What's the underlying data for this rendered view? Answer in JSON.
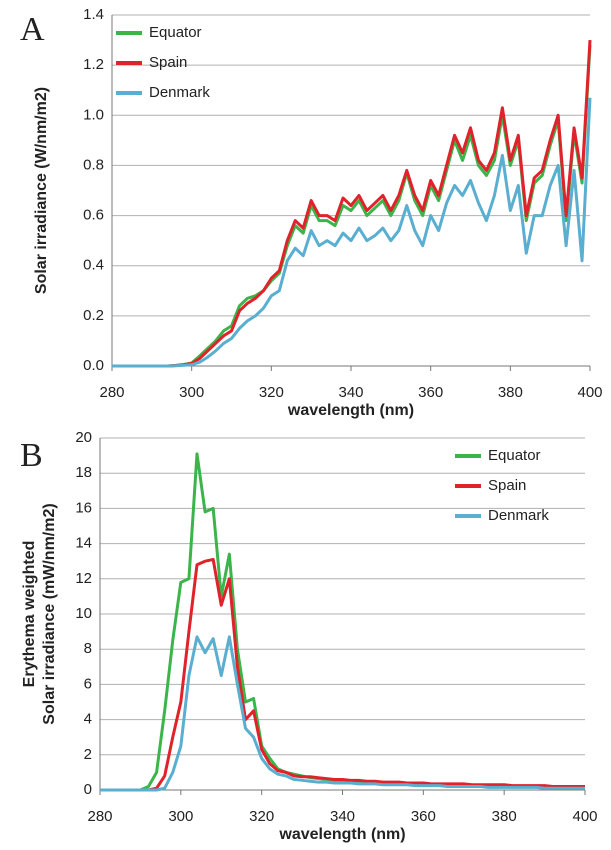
{
  "chart_data": [
    {
      "type": "line",
      "panel_label": "A",
      "xlabel": "wavelength (nm)",
      "ylabel": [
        "Solar irradiance (W/nm/m2)"
      ],
      "x": [
        280,
        282,
        284,
        286,
        288,
        290,
        292,
        294,
        296,
        298,
        300,
        302,
        304,
        306,
        308,
        310,
        312,
        314,
        316,
        318,
        320,
        322,
        324,
        326,
        328,
        330,
        332,
        334,
        336,
        338,
        340,
        342,
        344,
        346,
        348,
        350,
        352,
        354,
        356,
        358,
        360,
        362,
        364,
        366,
        368,
        370,
        372,
        374,
        376,
        378,
        380,
        382,
        384,
        386,
        388,
        390,
        392,
        394,
        396,
        398,
        400
      ],
      "xlim": [
        280,
        400
      ],
      "xticks": [
        280,
        300,
        320,
        340,
        360,
        380,
        400
      ],
      "ylim": [
        0,
        1.4
      ],
      "yticks": [
        {
          "value": 0,
          "label": "0.0"
        },
        0.2,
        0.4,
        0.6,
        0.8,
        {
          "value": 1,
          "label": "1.0"
        },
        1.2,
        1.4
      ],
      "grid": true,
      "legend": "upper left",
      "series": [
        {
          "name": "Equator",
          "color": "#3bb54a",
          "values": [
            0,
            0,
            0,
            0,
            0,
            0,
            0,
            0,
            0.002,
            0.006,
            0.012,
            0.04,
            0.07,
            0.1,
            0.14,
            0.16,
            0.24,
            0.27,
            0.28,
            0.3,
            0.34,
            0.37,
            0.48,
            0.56,
            0.53,
            0.64,
            0.58,
            0.58,
            0.56,
            0.64,
            0.62,
            0.66,
            0.6,
            0.63,
            0.66,
            0.6,
            0.66,
            0.77,
            0.66,
            0.6,
            0.72,
            0.66,
            0.78,
            0.9,
            0.82,
            0.92,
            0.8,
            0.76,
            0.82,
            1.0,
            0.8,
            0.9,
            0.58,
            0.73,
            0.76,
            0.88,
            0.98,
            0.58,
            0.93,
            0.73,
            1.28
          ]
        },
        {
          "name": "Spain",
          "color": "#e0222a",
          "values": [
            0,
            0,
            0,
            0,
            0,
            0,
            0,
            0,
            0.002,
            0.005,
            0.01,
            0.03,
            0.06,
            0.09,
            0.12,
            0.14,
            0.22,
            0.25,
            0.27,
            0.3,
            0.35,
            0.38,
            0.5,
            0.58,
            0.55,
            0.66,
            0.6,
            0.6,
            0.58,
            0.67,
            0.64,
            0.68,
            0.62,
            0.65,
            0.68,
            0.62,
            0.68,
            0.78,
            0.68,
            0.62,
            0.74,
            0.68,
            0.8,
            0.92,
            0.85,
            0.95,
            0.82,
            0.78,
            0.85,
            1.03,
            0.82,
            0.92,
            0.6,
            0.75,
            0.78,
            0.9,
            1.0,
            0.6,
            0.95,
            0.75,
            1.3
          ]
        },
        {
          "name": "Denmark",
          "color": "#5aaed0",
          "values": [
            0,
            0,
            0,
            0,
            0,
            0,
            0,
            0,
            0.001,
            0.003,
            0.005,
            0.015,
            0.035,
            0.06,
            0.09,
            0.11,
            0.15,
            0.18,
            0.2,
            0.23,
            0.28,
            0.3,
            0.42,
            0.47,
            0.44,
            0.54,
            0.48,
            0.5,
            0.48,
            0.53,
            0.5,
            0.55,
            0.5,
            0.52,
            0.55,
            0.5,
            0.54,
            0.64,
            0.54,
            0.48,
            0.6,
            0.54,
            0.65,
            0.72,
            0.68,
            0.74,
            0.65,
            0.58,
            0.68,
            0.84,
            0.62,
            0.72,
            0.45,
            0.6,
            0.6,
            0.72,
            0.8,
            0.48,
            0.78,
            0.42,
            1.07
          ]
        }
      ]
    },
    {
      "type": "line",
      "panel_label": "B",
      "xlabel": "wavelength (nm)",
      "ylabel": [
        "Erythema weighted",
        "Solar irradiance (mW/nm/m2)"
      ],
      "x": [
        280,
        282,
        284,
        286,
        288,
        290,
        292,
        294,
        296,
        298,
        300,
        302,
        304,
        306,
        308,
        310,
        312,
        314,
        316,
        318,
        320,
        322,
        324,
        326,
        328,
        330,
        332,
        334,
        336,
        338,
        340,
        342,
        344,
        346,
        348,
        350,
        352,
        354,
        356,
        358,
        360,
        362,
        364,
        366,
        368,
        370,
        372,
        374,
        376,
        378,
        380,
        382,
        384,
        386,
        388,
        390,
        392,
        394,
        396,
        398,
        400
      ],
      "xlim": [
        280,
        400
      ],
      "xticks": [
        280,
        300,
        320,
        340,
        360,
        380,
        400
      ],
      "ylim": [
        0,
        20
      ],
      "yticks": [
        0,
        2,
        4,
        6,
        8,
        10,
        12,
        14,
        16,
        18,
        20
      ],
      "grid": true,
      "legend": "upper right",
      "series": [
        {
          "name": "Equator",
          "color": "#3bb54a",
          "values": [
            0,
            0,
            0,
            0,
            0,
            0,
            0.2,
            1.0,
            4.5,
            8.5,
            11.8,
            12,
            19.1,
            15.8,
            16,
            11,
            13.4,
            8,
            5,
            5.2,
            2.5,
            1.8,
            1.2,
            1,
            0.9,
            0.8,
            0.7,
            0.65,
            0.6,
            0.55,
            0.55,
            0.5,
            0.5,
            0.45,
            0.45,
            0.4,
            0.4,
            0.4,
            0.35,
            0.35,
            0.35,
            0.3,
            0.3,
            0.3,
            0.3,
            0.3,
            0.25,
            0.25,
            0.25,
            0.25,
            0.25,
            0.2,
            0.2,
            0.2,
            0.2,
            0.2,
            0.2,
            0.2,
            0.2,
            0.2,
            0.2
          ]
        },
        {
          "name": "Spain",
          "color": "#e0222a",
          "values": [
            0,
            0,
            0,
            0,
            0,
            0,
            0,
            0.1,
            0.8,
            3,
            5,
            9,
            12.8,
            13,
            13.1,
            10.5,
            12,
            7,
            4,
            4.5,
            2.3,
            1.5,
            1.1,
            1,
            0.8,
            0.75,
            0.75,
            0.7,
            0.65,
            0.6,
            0.6,
            0.55,
            0.55,
            0.5,
            0.5,
            0.45,
            0.45,
            0.45,
            0.4,
            0.4,
            0.4,
            0.35,
            0.35,
            0.35,
            0.35,
            0.35,
            0.3,
            0.3,
            0.3,
            0.3,
            0.3,
            0.25,
            0.25,
            0.25,
            0.25,
            0.25,
            0.2,
            0.2,
            0.2,
            0.2,
            0.2
          ]
        },
        {
          "name": "Denmark",
          "color": "#5aaed0",
          "values": [
            0,
            0,
            0,
            0,
            0,
            0,
            0,
            0,
            0.1,
            1,
            2.5,
            6.5,
            8.7,
            7.8,
            8.6,
            6.5,
            8.7,
            6,
            3.5,
            3,
            1.8,
            1.2,
            0.9,
            0.8,
            0.6,
            0.55,
            0.5,
            0.45,
            0.45,
            0.4,
            0.4,
            0.4,
            0.35,
            0.35,
            0.35,
            0.3,
            0.3,
            0.3,
            0.3,
            0.25,
            0.25,
            0.25,
            0.25,
            0.2,
            0.2,
            0.2,
            0.2,
            0.2,
            0.15,
            0.15,
            0.15,
            0.15,
            0.15,
            0.15,
            0.15,
            0.1,
            0.1,
            0.1,
            0.1,
            0.1,
            0.1
          ]
        }
      ]
    }
  ]
}
